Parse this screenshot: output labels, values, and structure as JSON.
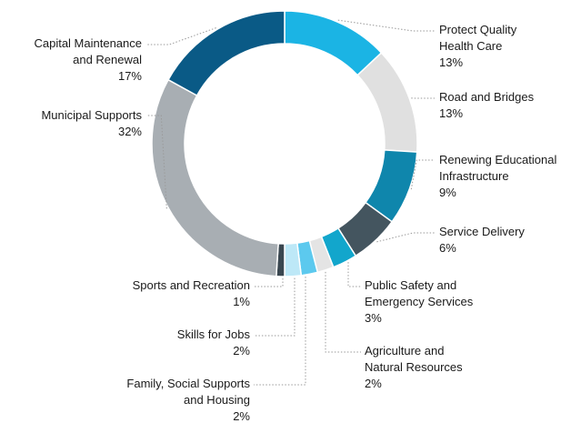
{
  "chart_data": {
    "type": "pie",
    "donut": true,
    "unit": "%",
    "slices": [
      {
        "label_lines": [
          "Protect Quality",
          "Health Care"
        ],
        "value": 13,
        "value_label": "13%",
        "color": "#1bb4e4"
      },
      {
        "label_lines": [
          "Road and Bridges"
        ],
        "value": 13,
        "value_label": "13%",
        "color": "#e0e0e0"
      },
      {
        "label_lines": [
          "Renewing Educational",
          "Infrastructure"
        ],
        "value": 9,
        "value_label": "9%",
        "color": "#0f86ac"
      },
      {
        "label_lines": [
          "Service Delivery"
        ],
        "value": 6,
        "value_label": "6%",
        "color": "#44555f"
      },
      {
        "label_lines": [
          "Public Safety and",
          "Emergency Services"
        ],
        "value": 3,
        "value_label": "3%",
        "color": "#12a6cc"
      },
      {
        "label_lines": [
          "Agriculture and",
          "Natural Resources"
        ],
        "value": 2,
        "value_label": "2%",
        "color": "#e4e4e4"
      },
      {
        "label_lines": [
          "Family, Social Supports",
          "and Housing"
        ],
        "value": 2,
        "value_label": "2%",
        "color": "#5cc9ee"
      },
      {
        "label_lines": [
          "Skills for Jobs"
        ],
        "value": 2,
        "value_label": "2%",
        "color": "#bde8f7"
      },
      {
        "label_lines": [
          "Sports and Recreation"
        ],
        "value": 1,
        "value_label": "1%",
        "color": "#3a4750"
      },
      {
        "label_lines": [
          "Municipal Supports"
        ],
        "value": 32,
        "value_label": "32%",
        "color": "#a8aeb3"
      },
      {
        "label_lines": [
          "Capital Maintenance",
          "and Renewal"
        ],
        "value": 17,
        "value_label": "17%",
        "color": "#0a5a86"
      }
    ]
  }
}
